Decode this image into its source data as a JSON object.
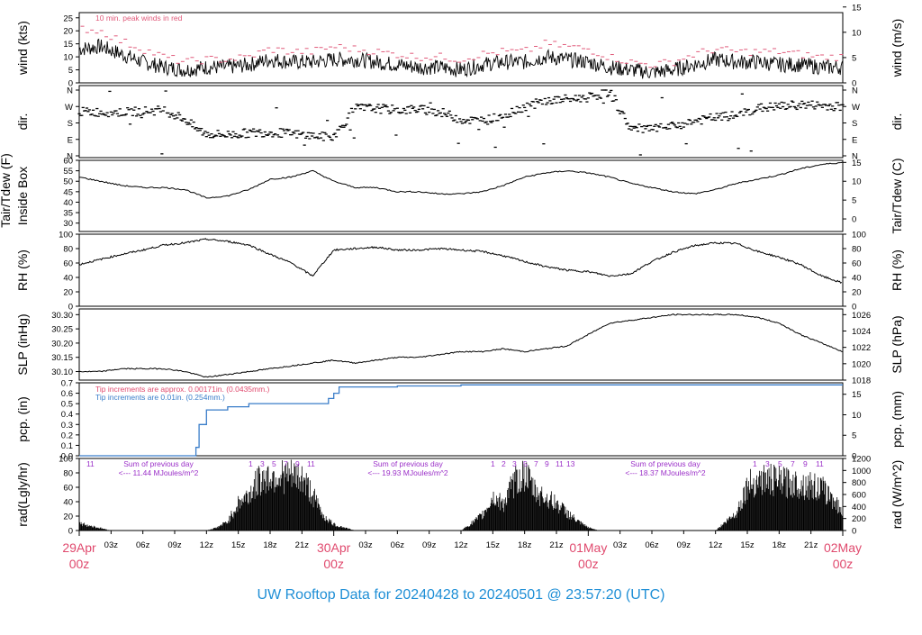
{
  "title": "UW Rooftop Data for 20240428  to  20240501 @ 23:57:20  (UTC)",
  "colors": {
    "title": "#1f8fd6",
    "date_labels": "#e04a6e",
    "peak_wind": "#e05a7a",
    "pcp_line": "#3a7dc9",
    "pcp_text_approx": "#e04a6e",
    "pcp_text_tip": "#3a7dc9",
    "rad_text": "#9b30c8",
    "trace": "#000000"
  },
  "time_axis": {
    "start": "2024-04-29T00:00Z",
    "end": "2024-05-02T00:00Z",
    "hour_ticks": [
      "03z",
      "06z",
      "09z",
      "12z",
      "15z",
      "18z",
      "21z",
      "03z",
      "06z",
      "09z",
      "12z",
      "15z",
      "18z",
      "21z",
      "03z",
      "06z",
      "09z",
      "12z",
      "15z",
      "18z",
      "21z"
    ],
    "day_labels": [
      {
        "date": "29Apr",
        "hour": "00z"
      },
      {
        "date": "30Apr",
        "hour": "00z"
      },
      {
        "date": "01May",
        "hour": "00z"
      },
      {
        "date": "02May",
        "hour": "00z"
      }
    ]
  },
  "chart_data": [
    {
      "type": "line",
      "panel": "wind",
      "ylabel_left": "wind (kts)",
      "ylabel_right": "wind (m/s)",
      "ylim": [
        0,
        27
      ],
      "yticks_left": [
        "0",
        "5",
        "10",
        "15",
        "20",
        "25"
      ],
      "yticks_right": [
        "0",
        "5",
        "10",
        "15"
      ],
      "annotation": "10 min. peak winds in red",
      "series": [
        {
          "name": "wind",
          "x_hours": [
            0,
            2,
            4,
            6,
            8,
            10,
            12,
            14,
            16,
            18,
            20,
            22,
            24,
            26,
            28,
            30,
            32,
            34,
            36,
            38,
            40,
            42,
            44,
            46,
            48,
            50,
            52,
            54,
            56,
            58,
            60,
            62,
            64,
            66,
            68,
            70,
            72
          ],
          "values": [
            13,
            14,
            11,
            8,
            6,
            5,
            6,
            6,
            7,
            9,
            8,
            8,
            9,
            9,
            8,
            7,
            6,
            6,
            5,
            7,
            8,
            8,
            10,
            9,
            8,
            6,
            5,
            4,
            5,
            7,
            9,
            8,
            8,
            7,
            7,
            6,
            6
          ]
        },
        {
          "name": "10 min. peak winds",
          "x_hours": [
            0,
            2,
            4,
            6,
            8,
            10,
            12,
            14,
            16,
            18,
            20,
            22,
            24,
            26,
            28,
            30,
            32,
            34,
            36,
            38,
            40,
            42,
            44,
            46,
            48,
            50,
            52,
            54,
            56,
            58,
            60,
            62,
            64,
            66,
            68,
            70,
            72
          ],
          "values": [
            21,
            20,
            16,
            13,
            10,
            8,
            9,
            9,
            10,
            13,
            12,
            12,
            14,
            13,
            12,
            11,
            10,
            10,
            9,
            11,
            12,
            12,
            15,
            14,
            13,
            10,
            8,
            7,
            8,
            11,
            13,
            12,
            12,
            12,
            11,
            10,
            10
          ]
        }
      ]
    },
    {
      "type": "scatter",
      "panel": "dir",
      "ylabel_left": "dir.",
      "ylabel_right": "dir.",
      "ylim": [
        0,
        360
      ],
      "yticks": [
        "N",
        "E",
        "S",
        "W",
        "N"
      ],
      "series": [
        {
          "name": "direction",
          "x_hours": [
            0,
            2,
            4,
            6,
            8,
            10,
            11,
            12,
            14,
            16,
            18,
            20,
            22,
            24,
            26,
            28,
            30,
            32,
            34,
            36,
            38,
            40,
            42,
            44,
            46,
            48,
            50,
            52,
            54,
            56,
            58,
            60,
            62,
            64,
            66,
            68,
            70,
            72
          ],
          "values": [
            240,
            240,
            238,
            245,
            250,
            200,
            150,
            120,
            115,
            125,
            130,
            120,
            110,
            100,
            260,
            260,
            250,
            255,
            240,
            200,
            190,
            220,
            270,
            300,
            310,
            320,
            350,
            150,
            145,
            160,
            190,
            210,
            220,
            260,
            270,
            280,
            275,
            270
          ]
        }
      ]
    },
    {
      "type": "line",
      "panel": "temperature",
      "ylabel_left": "Tair/Tdew (F)",
      "ylabel_left2": "Inside Box",
      "ylabel_right": "Tair/Tdew (C)",
      "ylim": [
        26,
        60
      ],
      "yticks_left": [
        "30",
        "35",
        "40",
        "45",
        "50",
        "55",
        "60"
      ],
      "yticks_right": [
        "0",
        "5",
        "10",
        "15"
      ],
      "series": [
        {
          "name": "Tair",
          "x_hours": [
            0,
            2,
            4,
            6,
            8,
            10,
            12,
            14,
            16,
            18,
            20,
            22,
            24,
            26,
            28,
            30,
            32,
            34,
            36,
            38,
            40,
            42,
            44,
            46,
            48,
            50,
            52,
            54,
            56,
            58,
            60,
            62,
            64,
            66,
            68,
            70,
            72
          ],
          "values": [
            52,
            50,
            48,
            47,
            47,
            46,
            42,
            43,
            46,
            51,
            52,
            55,
            50,
            47,
            47,
            45,
            45,
            44,
            44,
            45,
            48,
            52,
            54,
            55,
            54,
            52,
            49,
            47,
            45,
            44,
            46,
            49,
            51,
            53,
            56,
            58,
            59
          ]
        }
      ]
    },
    {
      "type": "line",
      "panel": "rh",
      "ylabel_left": "RH (%)",
      "ylabel_right": "RH (%)",
      "ylim": [
        0,
        100
      ],
      "yticks": [
        "0",
        "20",
        "40",
        "60",
        "80",
        "100"
      ],
      "series": [
        {
          "name": "RH",
          "x_hours": [
            0,
            2,
            4,
            6,
            8,
            10,
            12,
            14,
            16,
            18,
            20,
            22,
            24,
            26,
            28,
            30,
            32,
            34,
            36,
            38,
            40,
            42,
            44,
            46,
            48,
            50,
            52,
            54,
            56,
            58,
            60,
            62,
            64,
            66,
            68,
            70,
            72
          ],
          "values": [
            58,
            65,
            72,
            78,
            85,
            88,
            93,
            90,
            85,
            72,
            60,
            42,
            78,
            80,
            82,
            78,
            78,
            80,
            78,
            76,
            70,
            62,
            55,
            50,
            48,
            42,
            45,
            62,
            75,
            84,
            88,
            87,
            76,
            68,
            58,
            42,
            32
          ]
        }
      ]
    },
    {
      "type": "line",
      "panel": "pressure",
      "ylabel_left": "SLP (inHg)",
      "ylabel_right": "SLP (hPa)",
      "ylim": [
        30.07,
        30.32
      ],
      "yticks_left": [
        "30.10",
        "30.15",
        "30.20",
        "30.25",
        "30.30"
      ],
      "yticks_right": [
        "1018",
        "1020",
        "1022",
        "1024",
        "1026"
      ],
      "series": [
        {
          "name": "SLP",
          "x_hours": [
            0,
            2,
            4,
            6,
            8,
            10,
            12,
            14,
            16,
            18,
            20,
            22,
            24,
            26,
            28,
            30,
            32,
            34,
            36,
            38,
            40,
            42,
            44,
            46,
            48,
            50,
            52,
            54,
            56,
            58,
            60,
            62,
            64,
            66,
            68,
            70,
            72
          ],
          "values": [
            30.1,
            30.1,
            30.11,
            30.11,
            30.11,
            30.1,
            30.08,
            30.09,
            30.1,
            30.11,
            30.12,
            30.13,
            30.14,
            30.13,
            30.14,
            30.15,
            30.15,
            30.16,
            30.17,
            30.17,
            30.18,
            30.17,
            30.18,
            30.19,
            30.23,
            30.27,
            30.28,
            30.29,
            30.3,
            30.3,
            30.3,
            30.3,
            30.29,
            30.27,
            30.23,
            30.2,
            30.17
          ]
        }
      ]
    },
    {
      "type": "line",
      "panel": "precipitation",
      "ylabel_left": "pcp. (in)",
      "ylabel_right": "pcp. (mm)",
      "ylim": [
        0,
        0.7
      ],
      "yticks_left": [
        "0.0",
        "0.1",
        "0.2",
        "0.3",
        "0.4",
        "0.5",
        "0.6",
        "0.7"
      ],
      "yticks_right": [
        "0",
        "5",
        "10",
        "15"
      ],
      "annotation_approx": "Tip increments are approx. 0.00171in. (0.0435mm.)",
      "annotation_tip": "Tip increments are 0.01in. (0.254mm.)",
      "series": [
        {
          "name": "pcp",
          "x_hours": [
            0,
            10.7,
            11,
            11.3,
            12,
            14,
            16,
            18,
            20,
            22,
            23.5,
            24,
            24.5,
            27,
            30,
            36,
            42,
            48,
            54,
            60,
            66,
            72
          ],
          "values": [
            0,
            0,
            0.08,
            0.3,
            0.44,
            0.47,
            0.5,
            0.5,
            0.5,
            0.5,
            0.55,
            0.6,
            0.66,
            0.66,
            0.67,
            0.68,
            0.68,
            0.68,
            0.68,
            0.68,
            0.68,
            0.68
          ]
        }
      ]
    },
    {
      "type": "area",
      "panel": "radiation",
      "ylabel_left": "rad(Lgly/hr)",
      "ylabel_right": "rad (W/m^2)",
      "ylim": [
        0,
        100
      ],
      "yticks_left": [
        "0",
        "20",
        "40",
        "60",
        "80",
        "100"
      ],
      "yticks_right": [
        "0",
        "200",
        "400",
        "600",
        "800",
        "1000",
        "1200"
      ],
      "previous_day_label": "Sum of previous day",
      "daily_sums": [
        "<--- 11.44 MJoules/m^2",
        "<--- 19.93 MJoules/m^2",
        "<--- 18.37 MJoules/m^2"
      ],
      "marker_groups": [
        [
          "1",
          "1"
        ],
        [
          "1",
          "3",
          "5",
          "7",
          "9",
          "11"
        ],
        [
          "1",
          "2",
          "3",
          "5",
          "7",
          "9",
          "11",
          "13"
        ],
        [
          "1",
          "3",
          "5",
          "7",
          "9",
          "11"
        ]
      ],
      "series": [
        {
          "name": "radiation",
          "x_hours": [
            0,
            1,
            2,
            3,
            12,
            13,
            14,
            15,
            16,
            17,
            18,
            19,
            20,
            21,
            22,
            23,
            24,
            25,
            26,
            36,
            37,
            38,
            39,
            40,
            41,
            42,
            43,
            44,
            45,
            46,
            47,
            48,
            49,
            50,
            60,
            61,
            62,
            63,
            64,
            65,
            66,
            67,
            68,
            69,
            70,
            71,
            72
          ],
          "values": [
            12,
            8,
            4,
            0,
            0,
            5,
            15,
            45,
            60,
            85,
            90,
            92,
            90,
            88,
            60,
            25,
            10,
            5,
            0,
            0,
            12,
            25,
            55,
            45,
            80,
            95,
            65,
            55,
            45,
            30,
            15,
            5,
            0,
            0,
            0,
            15,
            30,
            75,
            85,
            85,
            82,
            80,
            78,
            75,
            70,
            55,
            30
          ]
        }
      ]
    }
  ]
}
